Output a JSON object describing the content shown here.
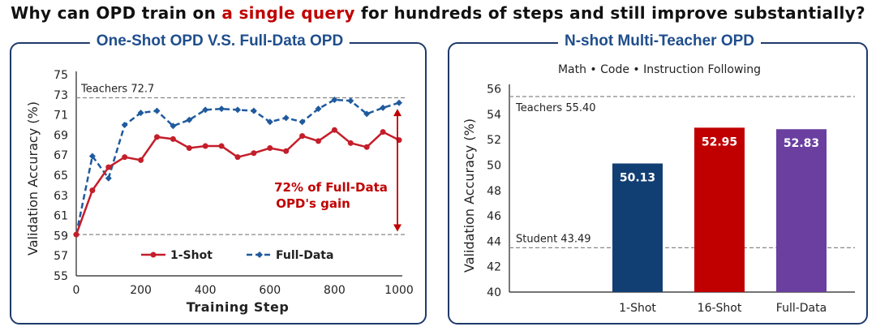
{
  "headline": {
    "prefix": "Why can OPD train on ",
    "highlight": "a single query",
    "suffix": " for hundreds of steps and still improve substantially?"
  },
  "colors": {
    "navy": "#1f3a6b",
    "title_blue": "#1f4e8c",
    "red": "#c00000",
    "one_shot_line": "#c41e2a",
    "full_data_line": "#1f5a9e",
    "bar_1shot": "#123f73",
    "bar_16shot": "#c00000",
    "bar_fulldata": "#6a3fa0"
  },
  "left_panel": {
    "title": "One-Shot OPD V.S. Full-Data OPD",
    "annotation_line1": "72% of Full-Data",
    "annotation_line2": "OPD's gain",
    "teacher_label": "Teachers 72.7"
  },
  "right_panel": {
    "title": "N-shot Multi-Teacher OPD",
    "subtitle": "Math • Code • Instruction Following",
    "teacher_label": "Teachers 55.40",
    "student_label": "Student 43.49"
  },
  "chart_data": [
    {
      "type": "line",
      "xlabel": "Training Step",
      "ylabel": "Validation Accuracy (%)",
      "xlim": [
        0,
        1000
      ],
      "ylim": [
        55,
        75
      ],
      "xticks": [
        0,
        200,
        400,
        600,
        800,
        1000
      ],
      "yticks": [
        55,
        57,
        59,
        61,
        63,
        65,
        67,
        69,
        71,
        73,
        75
      ],
      "reference_lines": [
        {
          "label": "Teachers 72.7",
          "value": 72.7
        },
        {
          "label": "",
          "value": 59.1
        }
      ],
      "legend_position": "bottom",
      "series": [
        {
          "name": "1-Shot",
          "x": [
            0,
            50,
            100,
            150,
            200,
            250,
            300,
            350,
            400,
            450,
            500,
            550,
            600,
            650,
            700,
            750,
            800,
            850,
            900,
            950,
            1000
          ],
          "y": [
            59.1,
            63.5,
            65.8,
            66.8,
            66.5,
            68.8,
            68.6,
            67.7,
            67.9,
            67.9,
            66.8,
            67.2,
            67.7,
            67.4,
            68.9,
            68.4,
            69.5,
            68.2,
            67.8,
            69.3,
            68.5
          ]
        },
        {
          "name": "Full-Data",
          "x": [
            0,
            50,
            100,
            150,
            200,
            250,
            300,
            350,
            400,
            450,
            500,
            550,
            600,
            650,
            700,
            750,
            800,
            850,
            900,
            950,
            1000
          ],
          "y": [
            59.1,
            66.9,
            64.7,
            70.0,
            71.2,
            71.4,
            69.9,
            70.5,
            71.5,
            71.6,
            71.5,
            71.4,
            70.3,
            70.7,
            70.3,
            71.6,
            72.5,
            72.4,
            71.1,
            71.7,
            72.2
          ]
        }
      ]
    },
    {
      "type": "bar",
      "ylabel": "Validation Accuracy (%)",
      "ylim": [
        40,
        57
      ],
      "yticks": [
        40,
        42,
        44,
        46,
        48,
        50,
        52,
        54,
        56
      ],
      "categories": [
        "1-Shot",
        "16-Shot",
        "Full-Data"
      ],
      "values": [
        50.13,
        52.95,
        52.83
      ],
      "data_labels": [
        "50.13",
        "52.95",
        "52.83"
      ],
      "reference_lines": [
        {
          "label": "Teachers 55.40",
          "value": 55.4
        },
        {
          "label": "Student 43.49",
          "value": 43.49
        }
      ]
    }
  ]
}
